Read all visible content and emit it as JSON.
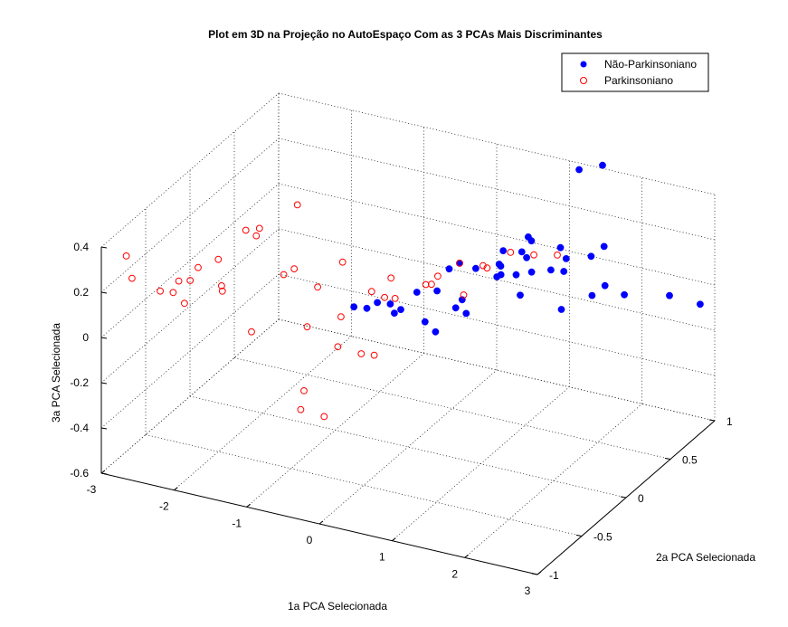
{
  "chart_data": {
    "type": "scatter",
    "title": "Plot em 3D na Projeção no AutoEspaço Com as 3 PCAs Mais Discriminantes",
    "xlabel": "1a PCA Selecionada",
    "ylabel": "2a PCA Selecionada",
    "zlabel": "3a PCA Selecionada",
    "xlim": [
      -3,
      3
    ],
    "ylim": [
      -1,
      1
    ],
    "zlim": [
      -0.6,
      0.4
    ],
    "xticks": [
      "-3",
      "-2",
      "-1",
      "0",
      "1",
      "2",
      "3"
    ],
    "yticks": [
      "-1",
      "-0.5",
      "0",
      "0.5",
      "1"
    ],
    "zticks": [
      "-0.6",
      "-0.4",
      "-0.2",
      "0",
      "0.2",
      "0.4"
    ],
    "grid": true,
    "legend_position": "top-right",
    "series": [
      {
        "name": "Não-Parkinsoniano",
        "marker": "filled-circle",
        "color": "#0000ff",
        "points": [
          [
            0.2,
            0.6,
            0.0
          ],
          [
            0.3,
            0.8,
            -0.05
          ],
          [
            0.1,
            0.5,
            0.05
          ],
          [
            0.4,
            0.7,
            0.0
          ],
          [
            0.6,
            0.9,
            0.05
          ],
          [
            1.0,
            0.4,
            0.1
          ],
          [
            0.9,
            0.6,
            0.1
          ],
          [
            1.2,
            0.8,
            0.05
          ],
          [
            1.5,
            0.5,
            -0.05
          ],
          [
            1.3,
            0.2,
            0.1
          ],
          [
            0.8,
            0.0,
            0.05
          ],
          [
            0.5,
            0.2,
            0.02
          ],
          [
            0.7,
            0.5,
            0.15
          ],
          [
            1.1,
            0.1,
            0.2
          ],
          [
            1.8,
            0.6,
            0.0
          ],
          [
            2.0,
            0.8,
            -0.05
          ],
          [
            1.6,
            0.3,
            0.2
          ],
          [
            1.9,
            0.2,
            0.25
          ],
          [
            2.1,
            0.5,
            0.1
          ],
          [
            0.9,
            -0.2,
            0.15
          ],
          [
            0.6,
            -0.3,
            0.1
          ],
          [
            0.4,
            0.0,
            0.12
          ],
          [
            1.4,
            -0.1,
            0.3
          ],
          [
            1.7,
            0.0,
            0.3
          ],
          [
            0.3,
            -0.4,
            0.15
          ],
          [
            0.0,
            -0.2,
            0.1
          ],
          [
            -0.2,
            -0.3,
            0.1
          ],
          [
            -0.3,
            -0.1,
            0.05
          ],
          [
            -0.1,
            0.0,
            0.0
          ],
          [
            0.5,
            -0.1,
            -0.02
          ],
          [
            1.2,
            0.3,
            0.25
          ],
          [
            0.2,
            0.3,
            0.1
          ],
          [
            0.0,
            0.1,
            0.05
          ],
          [
            1.6,
            0.9,
            0.1
          ],
          [
            2.5,
            0.9,
            -0.05
          ],
          [
            2.8,
            1.0,
            -0.1
          ],
          [
            0.8,
            0.7,
            0.15
          ],
          [
            1.0,
            0.9,
            0.05
          ],
          [
            1.3,
            1.0,
            0.0
          ],
          [
            -0.5,
            -0.2,
            0.05
          ],
          [
            1.5,
            0.7,
            0.5
          ],
          [
            1.7,
            0.8,
            0.5
          ]
        ]
      },
      {
        "name": "Parkinsoniano",
        "marker": "open-circle",
        "color": "#ff0000",
        "points": [
          [
            -2.8,
            -0.5,
            0.05
          ],
          [
            -2.9,
            -0.8,
            0.3
          ],
          [
            -2.7,
            -0.9,
            0.25
          ],
          [
            -2.5,
            -0.6,
            0.1
          ],
          [
            -2.4,
            -0.4,
            0.15
          ],
          [
            -2.3,
            -0.7,
            0.2
          ],
          [
            -2.2,
            -0.3,
            0.05
          ],
          [
            -2.0,
            -0.5,
            0.25
          ],
          [
            -1.8,
            -0.2,
            0.3
          ],
          [
            -1.6,
            -0.4,
            0.35
          ],
          [
            -1.5,
            -0.6,
            0.45
          ],
          [
            -1.4,
            -0.1,
            0.4
          ],
          [
            -1.2,
            -0.3,
            0.2
          ],
          [
            -1.0,
            -0.2,
            0.1
          ],
          [
            -0.9,
            0.0,
            0.15
          ],
          [
            -0.8,
            -0.1,
            -0.05
          ],
          [
            -0.6,
            -0.3,
            -0.1
          ],
          [
            -0.5,
            0.0,
            0.05
          ],
          [
            -0.4,
            -0.2,
            -0.15
          ],
          [
            -0.3,
            0.1,
            0.0
          ],
          [
            -0.2,
            -0.1,
            0.08
          ],
          [
            0.0,
            0.2,
            0.05
          ],
          [
            0.2,
            0.1,
            0.1
          ],
          [
            0.4,
            0.3,
            0.0
          ],
          [
            0.6,
            0.4,
            0.1
          ],
          [
            0.8,
            0.5,
            0.15
          ],
          [
            1.0,
            0.6,
            0.12
          ],
          [
            1.2,
            0.7,
            0.1
          ],
          [
            -1.7,
            -0.7,
            0.2
          ],
          [
            -1.9,
            -0.9,
            0.3
          ],
          [
            -1.1,
            -0.5,
            0.25
          ],
          [
            -0.7,
            -0.6,
            -0.2
          ],
          [
            -0.5,
            -0.8,
            -0.2
          ],
          [
            -0.3,
            -0.7,
            -0.25
          ],
          [
            -0.1,
            -0.3,
            -0.1
          ],
          [
            -2.1,
            -0.8,
            0.15
          ],
          [
            -1.3,
            -0.7,
            0.05
          ],
          [
            -0.9,
            -0.4,
            0.0
          ],
          [
            0.1,
            0.5,
            0.05
          ],
          [
            0.3,
            0.6,
            0.02
          ],
          [
            -0.6,
            0.3,
            0.0
          ],
          [
            -0.2,
            0.5,
            -0.03
          ]
        ]
      }
    ]
  }
}
